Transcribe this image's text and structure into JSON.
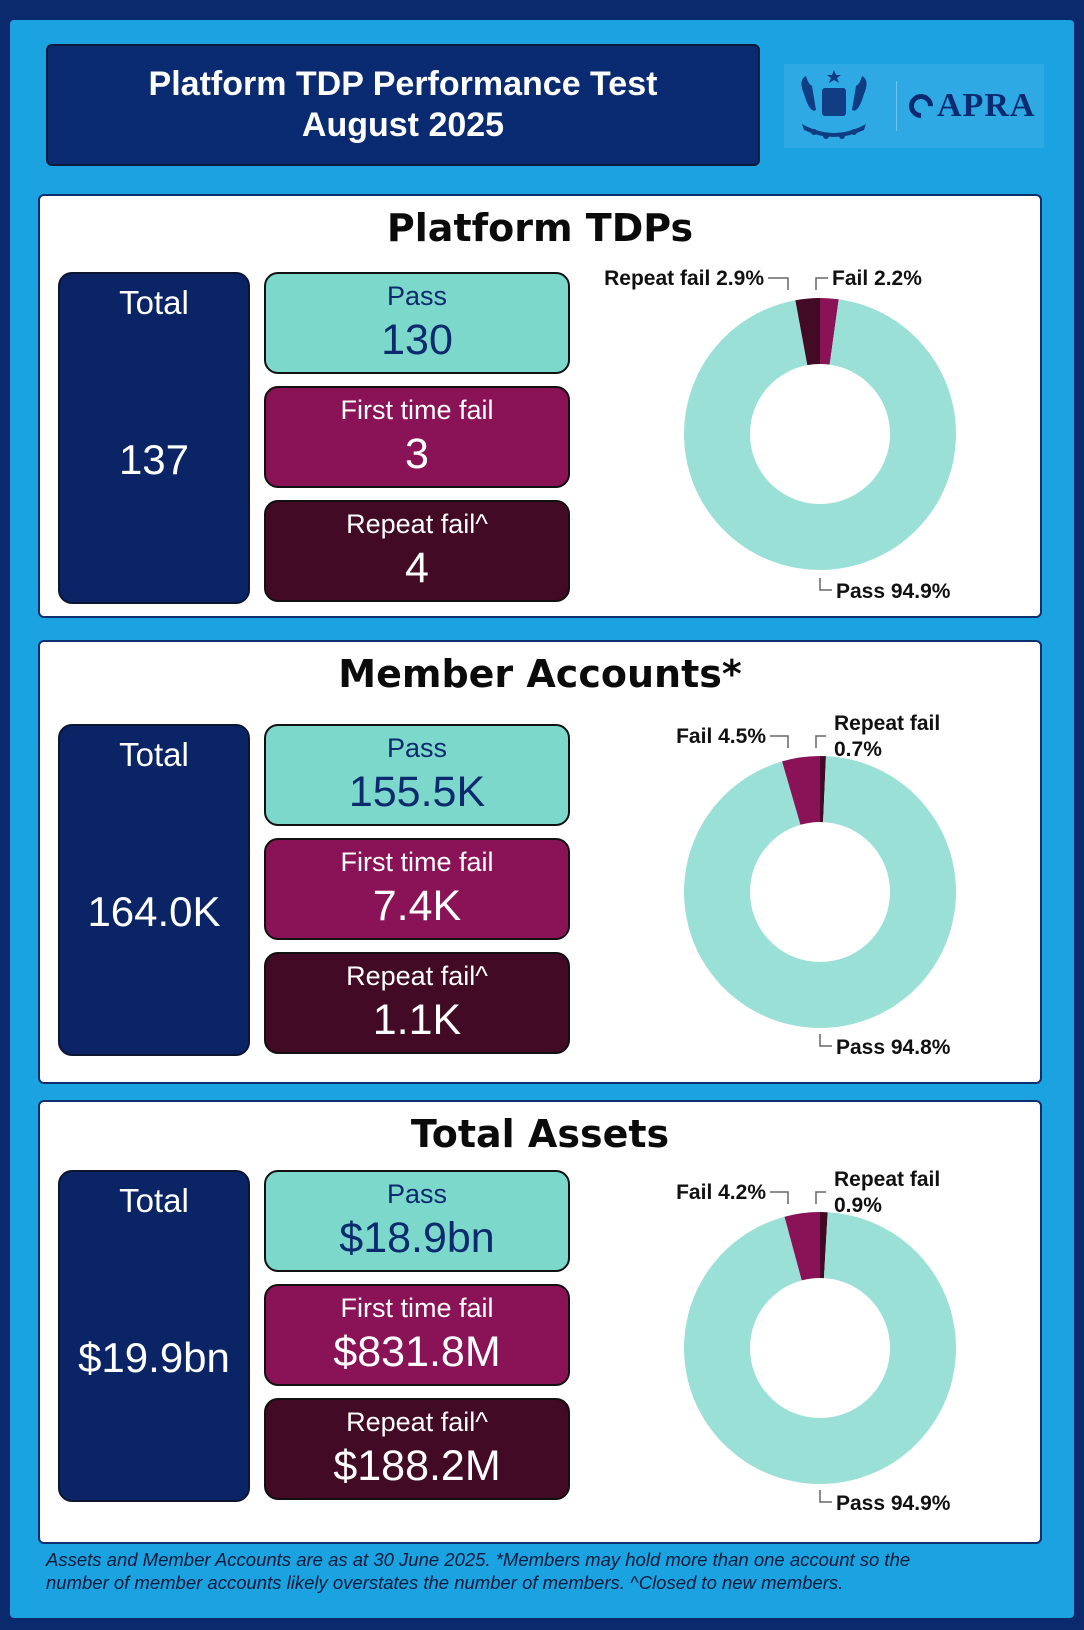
{
  "header": {
    "title_line1": "Platform TDP Performance Test",
    "title_line2": "August 2025",
    "logo_text": "APRA"
  },
  "colors": {
    "pass": "#9be0d6",
    "first_fail": "#8a1257",
    "repeat_fail": "#420a24",
    "navy": "#0a2466",
    "background": "#1aa3e0"
  },
  "panels": [
    {
      "title": "Platform TDPs",
      "total_label": "Total",
      "total_value": "137",
      "pass_label": "Pass",
      "pass_value": "130",
      "fail_label": "First time fail",
      "fail_value": "3",
      "repeat_label": "Repeat fail^",
      "repeat_value": "4"
    },
    {
      "title": "Member Accounts*",
      "total_label": "Total",
      "total_value": "164.0K",
      "pass_label": "Pass",
      "pass_value": "155.5K",
      "fail_label": "First time fail",
      "fail_value": "7.4K",
      "repeat_label": "Repeat fail^",
      "repeat_value": "1.1K"
    },
    {
      "title": "Total Assets",
      "total_label": "Total",
      "total_value": "$19.9bn",
      "pass_label": "Pass",
      "pass_value": "$18.9bn",
      "fail_label": "First time fail",
      "fail_value": "$831.8M",
      "repeat_label": "Repeat fail^",
      "repeat_value": "$188.2M"
    }
  ],
  "chart_data": [
    {
      "type": "pie",
      "donut": true,
      "slices": [
        {
          "label": "Pass 94.9%",
          "value": 94.9,
          "color": "#9be0d6"
        },
        {
          "label": "Repeat fail 2.9%",
          "value": 2.9,
          "color": "#420a24"
        },
        {
          "label": "Fail 2.2%",
          "value": 2.2,
          "color": "#8a1257"
        }
      ]
    },
    {
      "type": "pie",
      "donut": true,
      "slices": [
        {
          "label": "Pass 94.8%",
          "value": 94.8,
          "color": "#9be0d6"
        },
        {
          "label": "Fail 4.5%",
          "value": 4.5,
          "color": "#8a1257"
        },
        {
          "label": "Repeat fail 0.7%",
          "value": 0.7,
          "color": "#420a24"
        }
      ]
    },
    {
      "type": "pie",
      "donut": true,
      "slices": [
        {
          "label": "Pass 94.9%",
          "value": 94.9,
          "color": "#9be0d6"
        },
        {
          "label": "Fail 4.2%",
          "value": 4.2,
          "color": "#8a1257"
        },
        {
          "label": "Repeat fail 0.9%",
          "value": 0.9,
          "color": "#420a24"
        }
      ]
    }
  ],
  "footnote": {
    "line1": "Assets and Member Accounts are as at 30 June 2025. *Members may hold more than one account so the",
    "line2": "number of member accounts likely overstates the number of members. ^Closed to new members."
  }
}
